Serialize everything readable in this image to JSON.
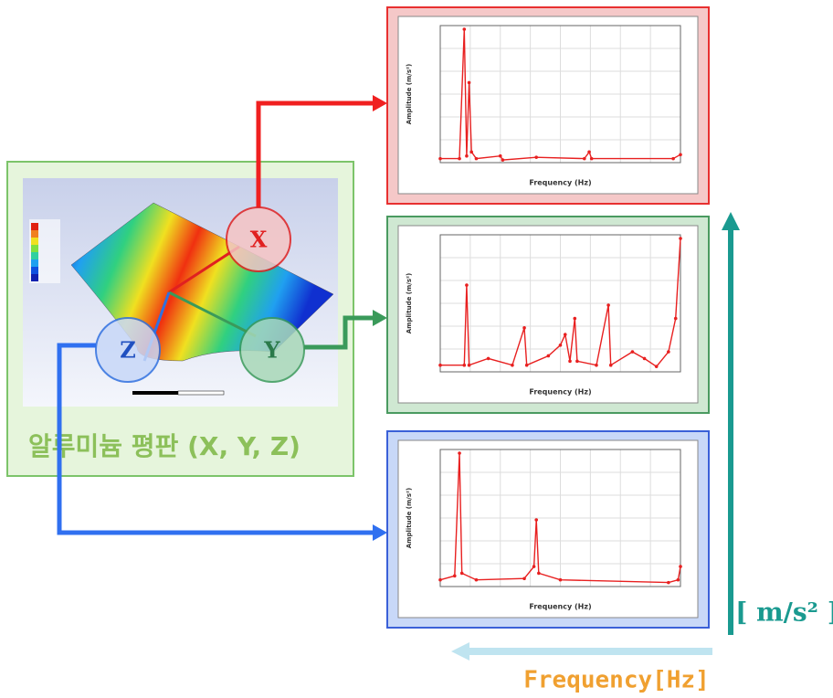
{
  "plate_panel": {
    "title": "알루미늄 평판 (X, Y, Z)"
  },
  "axes": {
    "x": "X",
    "y": "Y",
    "z": "Z"
  },
  "charts": [
    {
      "x_title": "Frequency (Hz)",
      "y_title": "Amplitude (m/s²)"
    },
    {
      "x_title": "Frequency (Hz)",
      "y_title": "Amplitude (m/s²)"
    },
    {
      "x_title": "Frequency (Hz)",
      "y_title": "Amplitude (m/s²)"
    }
  ],
  "legend": {
    "y_unit": "[ m/s² ]",
    "x_unit": "Frequency[Hz]"
  }
}
